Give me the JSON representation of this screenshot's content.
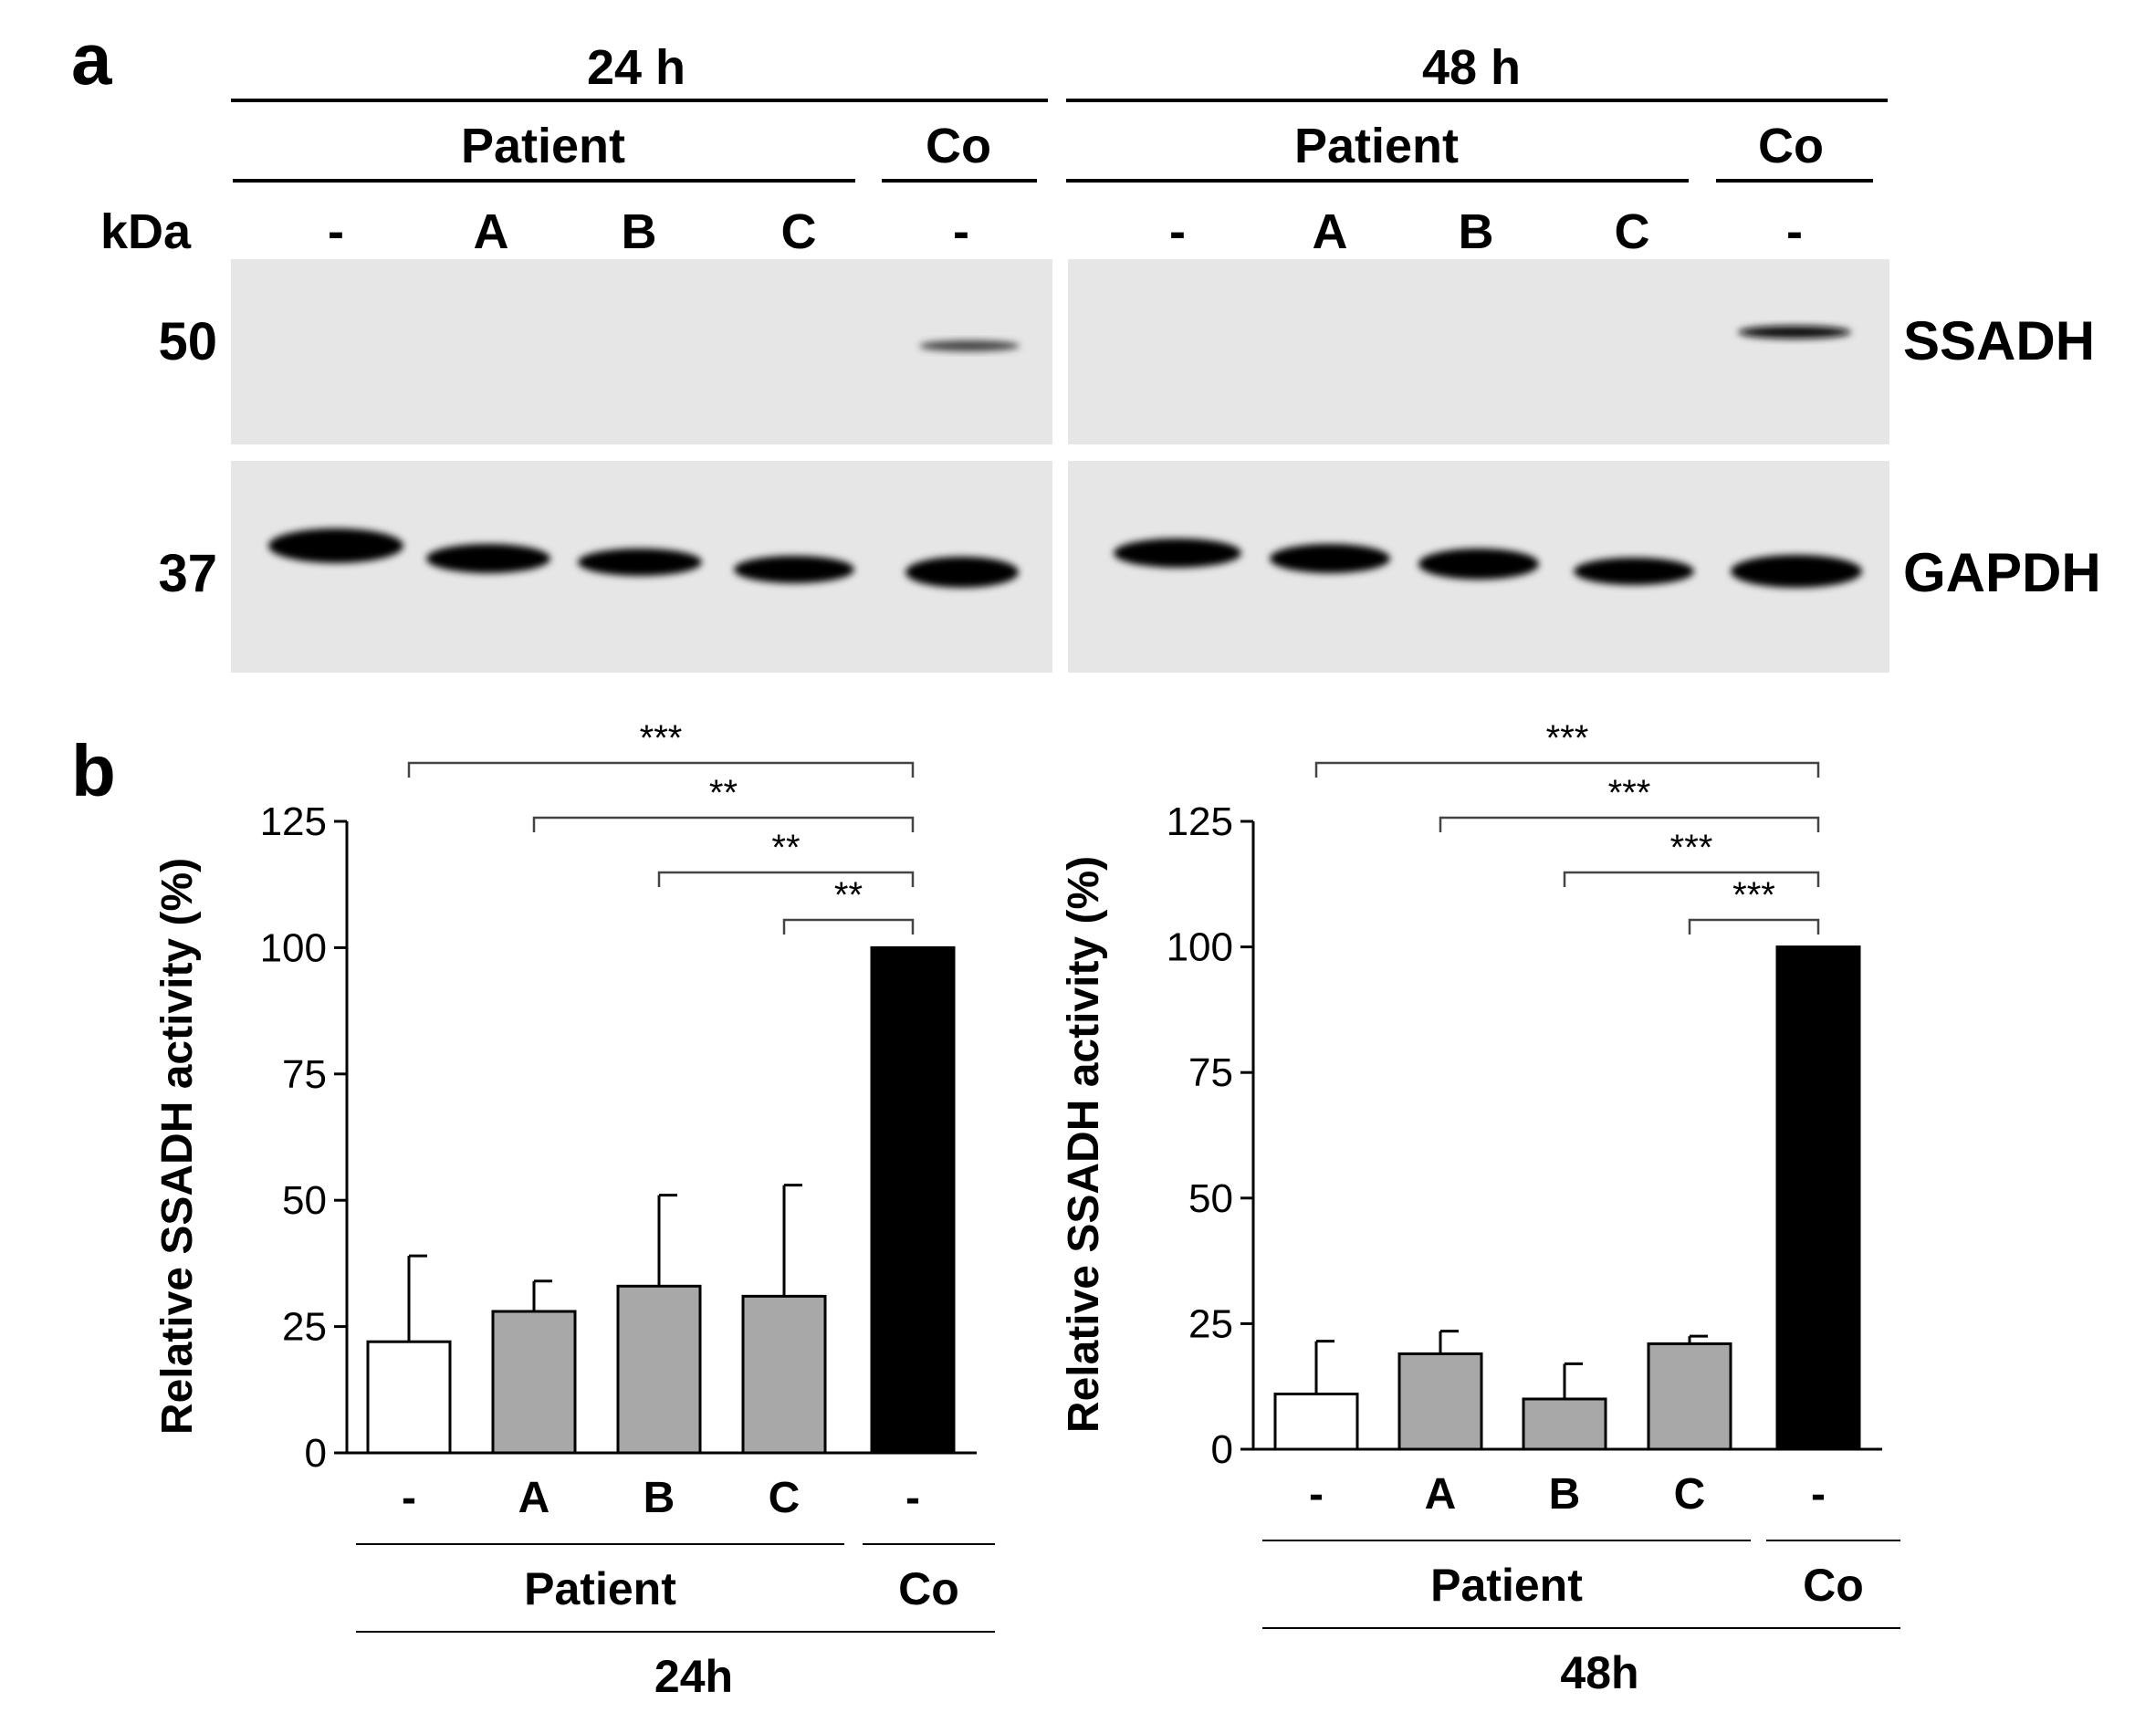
{
  "panels": {
    "a": "a",
    "b": "b"
  },
  "blot": {
    "kda_label": "kDa",
    "groups": [
      {
        "time": "24 h",
        "patient_label": "Patient",
        "control_label": "Co",
        "lanes": [
          "-",
          "A",
          "B",
          "C",
          "-"
        ]
      },
      {
        "time": "48 h",
        "patient_label": "Patient",
        "control_label": "Co",
        "lanes": [
          "-",
          "A",
          "B",
          "C",
          "-"
        ]
      }
    ],
    "rows": [
      {
        "marker": "50",
        "protein": "SSADH"
      },
      {
        "marker": "37",
        "protein": "GAPDH"
      }
    ],
    "colors": {
      "membrane": "#e6e6e6",
      "band": "#0a0a0a"
    }
  },
  "chart_data": [
    {
      "type": "bar",
      "ylabel": "Relative SSADH activity (%)",
      "ylim": [
        0,
        125
      ],
      "yticks": [
        0,
        25,
        50,
        75,
        100,
        125
      ],
      "categories": [
        "-",
        "A",
        "B",
        "C",
        "-"
      ],
      "values": [
        22,
        28,
        33,
        31,
        100
      ],
      "errors": [
        17,
        6,
        18,
        22,
        0
      ],
      "fills": [
        "#ffffff",
        "#a8a8a8",
        "#a8a8a8",
        "#a8a8a8",
        "#000000"
      ],
      "group_labels": {
        "patient": "Patient",
        "control": "Co"
      },
      "time_label": "24h",
      "significance": [
        {
          "from": 0,
          "to": 4,
          "label": "***"
        },
        {
          "from": 1,
          "to": 4,
          "label": "**"
        },
        {
          "from": 2,
          "to": 4,
          "label": "**"
        },
        {
          "from": 3,
          "to": 4,
          "label": "**"
        }
      ]
    },
    {
      "type": "bar",
      "ylabel": "Relative SSADH activity (%)",
      "ylim": [
        0,
        125
      ],
      "yticks": [
        0,
        25,
        50,
        75,
        100,
        125
      ],
      "categories": [
        "-",
        "A",
        "B",
        "C",
        "-"
      ],
      "values": [
        11,
        19,
        10,
        21,
        100
      ],
      "errors": [
        10.5,
        4.5,
        7,
        1.5,
        0
      ],
      "fills": [
        "#ffffff",
        "#a8a8a8",
        "#a8a8a8",
        "#a8a8a8",
        "#000000"
      ],
      "group_labels": {
        "patient": "Patient",
        "control": "Co"
      },
      "time_label": "48h",
      "significance": [
        {
          "from": 0,
          "to": 4,
          "label": "***"
        },
        {
          "from": 1,
          "to": 4,
          "label": "***"
        },
        {
          "from": 2,
          "to": 4,
          "label": "***"
        },
        {
          "from": 3,
          "to": 4,
          "label": "***"
        }
      ]
    }
  ]
}
